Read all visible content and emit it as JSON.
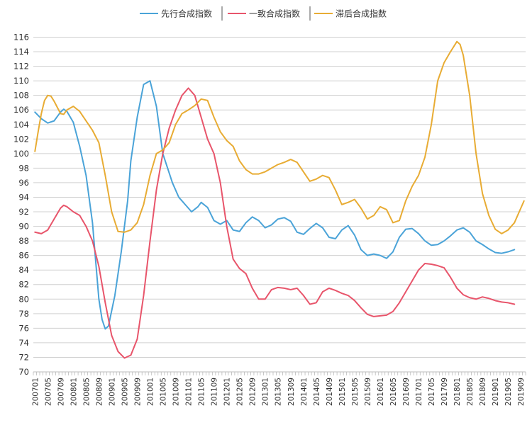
{
  "chart_data": {
    "type": "line",
    "title": "",
    "xlabel": "",
    "ylabel": "",
    "ylim": [
      70,
      116
    ],
    "yticks": [
      70,
      72,
      74,
      76,
      78,
      80,
      82,
      84,
      86,
      88,
      90,
      92,
      94,
      96,
      98,
      100,
      102,
      104,
      106,
      108,
      110,
      112,
      114,
      116
    ],
    "x_start": "200701",
    "x_end": "201910",
    "xtick_labels": [
      "200701",
      "200705",
      "200709",
      "200801",
      "200805",
      "200809",
      "200901",
      "200905",
      "200909",
      "201001",
      "201005",
      "201009",
      "201101",
      "201105",
      "201109",
      "201201",
      "201205",
      "201209",
      "201301",
      "201305",
      "201309",
      "201401",
      "201405",
      "201409",
      "201501",
      "201505",
      "201509",
      "201601",
      "201605",
      "201609",
      "201701",
      "201705",
      "201709",
      "201801",
      "201805",
      "201809",
      "201901",
      "201905",
      "201909"
    ],
    "grid": "horizontal",
    "legend_position": "top-center",
    "series": [
      {
        "name": "先行合成指数",
        "color": "#4aa3d8",
        "points": [
          [
            "200701",
            105.7
          ],
          [
            "200703",
            104.8
          ],
          [
            "200705",
            104.2
          ],
          [
            "200707",
            104.5
          ],
          [
            "200709",
            105.7
          ],
          [
            "200710",
            106.1
          ],
          [
            "200711",
            105.8
          ],
          [
            "200801",
            104.3
          ],
          [
            "200803",
            101.0
          ],
          [
            "200805",
            97.0
          ],
          [
            "200807",
            90.5
          ],
          [
            "200809",
            80.0
          ],
          [
            "200810",
            77.2
          ],
          [
            "200811",
            75.9
          ],
          [
            "200812",
            76.3
          ],
          [
            "200902",
            80.5
          ],
          [
            "200904",
            86.5
          ],
          [
            "200906",
            93.5
          ],
          [
            "200907",
            99.0
          ],
          [
            "200909",
            105.0
          ],
          [
            "200911",
            109.5
          ],
          [
            "201001",
            110.0
          ],
          [
            "201003",
            106.5
          ],
          [
            "201005",
            100.0
          ],
          [
            "201008",
            96.0
          ],
          [
            "201010",
            94.0
          ],
          [
            "201012",
            93.0
          ],
          [
            "201102",
            92.0
          ],
          [
            "201104",
            92.7
          ],
          [
            "201105",
            93.3
          ],
          [
            "201107",
            92.6
          ],
          [
            "201109",
            90.8
          ],
          [
            "201111",
            90.3
          ],
          [
            "201201",
            90.8
          ],
          [
            "201203",
            89.5
          ],
          [
            "201205",
            89.3
          ],
          [
            "201207",
            90.5
          ],
          [
            "201209",
            91.3
          ],
          [
            "201211",
            90.8
          ],
          [
            "201301",
            89.8
          ],
          [
            "201303",
            90.2
          ],
          [
            "201305",
            91.0
          ],
          [
            "201307",
            91.2
          ],
          [
            "201309",
            90.7
          ],
          [
            "201311",
            89.2
          ],
          [
            "201401",
            88.9
          ],
          [
            "201403",
            89.7
          ],
          [
            "201405",
            90.4
          ],
          [
            "201407",
            89.8
          ],
          [
            "201409",
            88.5
          ],
          [
            "201411",
            88.3
          ],
          [
            "201501",
            89.5
          ],
          [
            "201503",
            90.1
          ],
          [
            "201505",
            88.8
          ],
          [
            "201507",
            86.8
          ],
          [
            "201509",
            86.0
          ],
          [
            "201511",
            86.2
          ],
          [
            "201601",
            86.0
          ],
          [
            "201603",
            85.6
          ],
          [
            "201605",
            86.5
          ],
          [
            "201607",
            88.5
          ],
          [
            "201609",
            89.6
          ],
          [
            "201611",
            89.7
          ],
          [
            "201701",
            89.0
          ],
          [
            "201703",
            88.0
          ],
          [
            "201705",
            87.4
          ],
          [
            "201707",
            87.5
          ],
          [
            "201709",
            88.0
          ],
          [
            "201711",
            88.7
          ],
          [
            "201801",
            89.5
          ],
          [
            "201803",
            89.8
          ],
          [
            "201805",
            89.2
          ],
          [
            "201807",
            88.0
          ],
          [
            "201809",
            87.5
          ],
          [
            "201811",
            86.9
          ],
          [
            "201901",
            86.4
          ],
          [
            "201903",
            86.3
          ],
          [
            "201905",
            86.5
          ],
          [
            "201907",
            86.8
          ]
        ]
      },
      {
        "name": "一致合成指数",
        "color": "#e8556b",
        "points": [
          [
            "200701",
            89.2
          ],
          [
            "200703",
            89.0
          ],
          [
            "200705",
            89.5
          ],
          [
            "200707",
            91.0
          ],
          [
            "200709",
            92.5
          ],
          [
            "200710",
            92.9
          ],
          [
            "200711",
            92.7
          ],
          [
            "200801",
            92.0
          ],
          [
            "200803",
            91.5
          ],
          [
            "200805",
            90.0
          ],
          [
            "200807",
            88.0
          ],
          [
            "200809",
            84.5
          ],
          [
            "200811",
            79.5
          ],
          [
            "200901",
            75.0
          ],
          [
            "200903",
            72.8
          ],
          [
            "200905",
            71.9
          ],
          [
            "200907",
            72.3
          ],
          [
            "200909",
            74.5
          ],
          [
            "200911",
            80.5
          ],
          [
            "201001",
            88.0
          ],
          [
            "201003",
            95.0
          ],
          [
            "201005",
            100.0
          ],
          [
            "201007",
            103.5
          ],
          [
            "201009",
            106.0
          ],
          [
            "201011",
            108.0
          ],
          [
            "201101",
            109.0
          ],
          [
            "201103",
            108.0
          ],
          [
            "201105",
            105.0
          ],
          [
            "201107",
            102.0
          ],
          [
            "201109",
            100.0
          ],
          [
            "201111",
            96.0
          ],
          [
            "201201",
            90.0
          ],
          [
            "201203",
            85.5
          ],
          [
            "201205",
            84.2
          ],
          [
            "201207",
            83.5
          ],
          [
            "201209",
            81.5
          ],
          [
            "201211",
            80.0
          ],
          [
            "201301",
            80.0
          ],
          [
            "201303",
            81.3
          ],
          [
            "201305",
            81.6
          ],
          [
            "201307",
            81.5
          ],
          [
            "201309",
            81.3
          ],
          [
            "201311",
            81.5
          ],
          [
            "201401",
            80.5
          ],
          [
            "201403",
            79.3
          ],
          [
            "201405",
            79.5
          ],
          [
            "201407",
            81.0
          ],
          [
            "201409",
            81.5
          ],
          [
            "201411",
            81.2
          ],
          [
            "201501",
            80.8
          ],
          [
            "201503",
            80.5
          ],
          [
            "201505",
            79.8
          ],
          [
            "201507",
            78.8
          ],
          [
            "201509",
            77.9
          ],
          [
            "201511",
            77.6
          ],
          [
            "201601",
            77.7
          ],
          [
            "201603",
            77.8
          ],
          [
            "201605",
            78.3
          ],
          [
            "201607",
            79.5
          ],
          [
            "201609",
            81.0
          ],
          [
            "201611",
            82.5
          ],
          [
            "201701",
            84.0
          ],
          [
            "201703",
            84.9
          ],
          [
            "201705",
            84.8
          ],
          [
            "201707",
            84.6
          ],
          [
            "201709",
            84.3
          ],
          [
            "201711",
            83.0
          ],
          [
            "201801",
            81.5
          ],
          [
            "201803",
            80.6
          ],
          [
            "201805",
            80.2
          ],
          [
            "201807",
            80.0
          ],
          [
            "201809",
            80.3
          ],
          [
            "201811",
            80.1
          ],
          [
            "201901",
            79.8
          ],
          [
            "201903",
            79.6
          ],
          [
            "201905",
            79.5
          ],
          [
            "201907",
            79.3
          ]
        ]
      },
      {
        "name": "滞后合成指数",
        "color": "#e8ac34",
        "points": [
          [
            "200701",
            100.3
          ],
          [
            "200702",
            103.0
          ],
          [
            "200703",
            105.5
          ],
          [
            "200704",
            107.3
          ],
          [
            "200705",
            108.0
          ],
          [
            "200706",
            107.9
          ],
          [
            "200707",
            107.2
          ],
          [
            "200709",
            105.5
          ],
          [
            "200710",
            105.4
          ],
          [
            "200711",
            106.0
          ],
          [
            "200801",
            106.5
          ],
          [
            "200803",
            105.8
          ],
          [
            "200805",
            104.5
          ],
          [
            "200807",
            103.2
          ],
          [
            "200809",
            101.5
          ],
          [
            "200811",
            97.0
          ],
          [
            "200901",
            92.0
          ],
          [
            "200903",
            89.3
          ],
          [
            "200905",
            89.2
          ],
          [
            "200907",
            89.5
          ],
          [
            "200909",
            90.5
          ],
          [
            "200911",
            93.0
          ],
          [
            "201001",
            97.0
          ],
          [
            "201003",
            100.0
          ],
          [
            "201005",
            100.5
          ],
          [
            "201007",
            101.5
          ],
          [
            "201009",
            104.0
          ],
          [
            "201011",
            105.5
          ],
          [
            "201101",
            106.0
          ],
          [
            "201103",
            106.6
          ],
          [
            "201105",
            107.5
          ],
          [
            "201107",
            107.3
          ],
          [
            "201109",
            105.0
          ],
          [
            "201111",
            103.0
          ],
          [
            "201201",
            101.8
          ],
          [
            "201203",
            101.0
          ],
          [
            "201205",
            99.0
          ],
          [
            "201207",
            97.8
          ],
          [
            "201209",
            97.2
          ],
          [
            "201211",
            97.2
          ],
          [
            "201301",
            97.5
          ],
          [
            "201303",
            98.0
          ],
          [
            "201305",
            98.5
          ],
          [
            "201307",
            98.8
          ],
          [
            "201309",
            99.2
          ],
          [
            "201311",
            98.8
          ],
          [
            "201401",
            97.5
          ],
          [
            "201403",
            96.2
          ],
          [
            "201405",
            96.5
          ],
          [
            "201407",
            97.0
          ],
          [
            "201409",
            96.7
          ],
          [
            "201411",
            95.0
          ],
          [
            "201501",
            93.0
          ],
          [
            "201503",
            93.3
          ],
          [
            "201505",
            93.7
          ],
          [
            "201507",
            92.5
          ],
          [
            "201509",
            91.0
          ],
          [
            "201511",
            91.5
          ],
          [
            "201601",
            92.7
          ],
          [
            "201603",
            92.3
          ],
          [
            "201605",
            90.5
          ],
          [
            "201607",
            90.8
          ],
          [
            "201609",
            93.5
          ],
          [
            "201611",
            95.5
          ],
          [
            "201701",
            97.0
          ],
          [
            "201703",
            99.5
          ],
          [
            "201705",
            104.0
          ],
          [
            "201707",
            110.0
          ],
          [
            "201709",
            112.5
          ],
          [
            "201711",
            114.0
          ],
          [
            "201801",
            115.4
          ],
          [
            "201802",
            115.0
          ],
          [
            "201803",
            113.5
          ],
          [
            "201805",
            108.0
          ],
          [
            "201807",
            100.0
          ],
          [
            "201809",
            94.5
          ],
          [
            "201811",
            91.5
          ],
          [
            "201901",
            89.6
          ],
          [
            "201903",
            89.0
          ],
          [
            "201905",
            89.5
          ],
          [
            "201907",
            90.5
          ],
          [
            "201909",
            92.5
          ],
          [
            "201910",
            93.5
          ]
        ]
      }
    ]
  }
}
